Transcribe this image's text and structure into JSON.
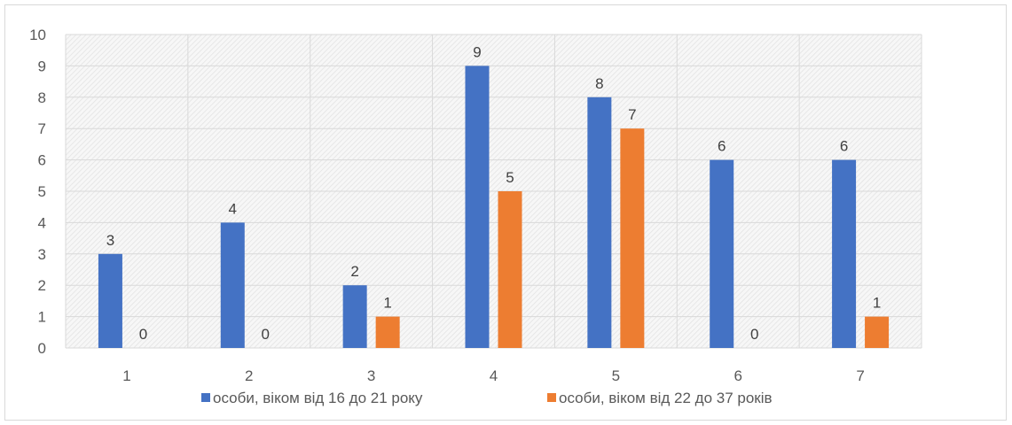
{
  "chart_data": {
    "type": "bar",
    "categories": [
      "1",
      "2",
      "3",
      "4",
      "5",
      "6",
      "7"
    ],
    "series": [
      {
        "name": "особи, віком від 16 до 21 року",
        "values": [
          3,
          4,
          2,
          9,
          8,
          6,
          6
        ],
        "color": "#4472C4"
      },
      {
        "name": "особи, віком від 22 до 37 років",
        "values": [
          0,
          0,
          1,
          5,
          7,
          0,
          1
        ],
        "color": "#ED7D31"
      }
    ],
    "y_ticks": [
      "0",
      "1",
      "2",
      "3",
      "4",
      "5",
      "6",
      "7",
      "8",
      "9",
      "10"
    ],
    "ylim": [
      0,
      10
    ],
    "grid": true,
    "legend_position": "bottom",
    "data_labels": true,
    "plot_background": "hatched light gray"
  }
}
